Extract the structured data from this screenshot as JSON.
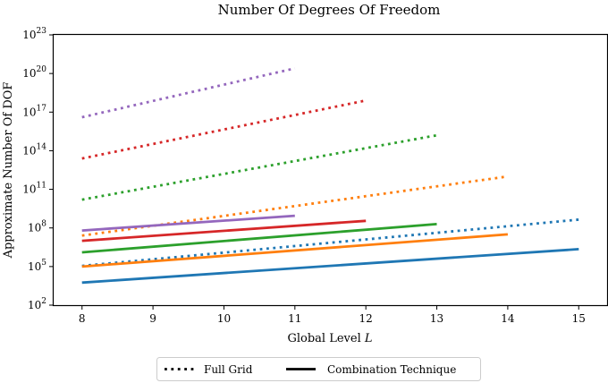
{
  "chart_data": {
    "type": "line",
    "title": "Number Of Degrees Of Freedom",
    "xlabel_prefix": "Global Level ",
    "xlabel_var": "L",
    "ylabel": "Approximate Number Of DOF",
    "yscale": "log",
    "ylim_log10": [
      2,
      23
    ],
    "xlim": [
      7.6,
      15.4
    ],
    "x_ticks": [
      8,
      9,
      10,
      11,
      12,
      13,
      14,
      15
    ],
    "y_ticks": [
      {
        "base": "10",
        "exp": "2",
        "value": 2
      },
      {
        "base": "10",
        "exp": "5",
        "value": 5
      },
      {
        "base": "10",
        "exp": "8",
        "value": 8
      },
      {
        "base": "10",
        "exp": "11",
        "value": 11
      },
      {
        "base": "10",
        "exp": "14",
        "value": 14
      },
      {
        "base": "10",
        "exp": "17",
        "value": 17
      },
      {
        "base": "10",
        "exp": "20",
        "value": 20
      },
      {
        "base": "10",
        "exp": "23",
        "value": 23
      }
    ],
    "series": [
      {
        "name": "blue-full-grid",
        "style": "dotted",
        "color": "#1f77b4",
        "x": [
          8,
          15
        ],
        "log10_y": [
          5.05,
          8.65
        ]
      },
      {
        "name": "blue-combination",
        "style": "solid",
        "color": "#1f77b4",
        "x": [
          8,
          15
        ],
        "log10_y": [
          3.75,
          6.35
        ]
      },
      {
        "name": "orange-full-grid",
        "style": "dotted",
        "color": "#ff7f0e",
        "x": [
          8,
          14
        ],
        "log10_y": [
          7.4,
          12.0
        ]
      },
      {
        "name": "orange-combination",
        "style": "solid",
        "color": "#ff7f0e",
        "x": [
          8,
          14
        ],
        "log10_y": [
          5.0,
          7.5
        ]
      },
      {
        "name": "green-full-grid",
        "style": "dotted",
        "color": "#2ca02c",
        "x": [
          8,
          13
        ],
        "log10_y": [
          10.2,
          15.2
        ]
      },
      {
        "name": "green-combination",
        "style": "solid",
        "color": "#2ca02c",
        "x": [
          8,
          13
        ],
        "log10_y": [
          6.1,
          8.3
        ]
      },
      {
        "name": "red-full-grid",
        "style": "dotted",
        "color": "#d62728",
        "x": [
          8,
          12
        ],
        "log10_y": [
          13.4,
          17.9
        ]
      },
      {
        "name": "red-combination",
        "style": "solid",
        "color": "#d62728",
        "x": [
          8,
          12
        ],
        "log10_y": [
          7.0,
          8.55
        ]
      },
      {
        "name": "purple-full-grid",
        "style": "dotted",
        "color": "#9467bd",
        "x": [
          8,
          11
        ],
        "log10_y": [
          16.6,
          20.4
        ]
      },
      {
        "name": "purple-combination",
        "style": "solid",
        "color": "#9467bd",
        "x": [
          8,
          11
        ],
        "log10_y": [
          7.8,
          8.95
        ]
      }
    ],
    "legend": {
      "placement": "bottom-center",
      "entries": [
        {
          "label": "Full Grid",
          "style": "dotted"
        },
        {
          "label": "Combination Technique",
          "style": "solid"
        }
      ]
    }
  }
}
